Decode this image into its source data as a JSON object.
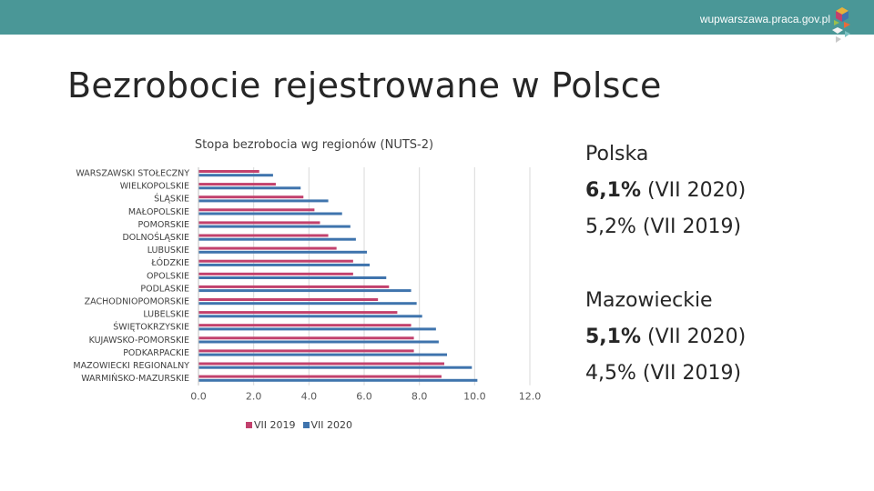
{
  "header": {
    "site_url": "wupwarszawa.praca.gov.pl",
    "logo_icon": "cube-logo-icon"
  },
  "page": {
    "title": "Bezrobocie rejestrowane w Polsce"
  },
  "side_panel": {
    "blocks": [
      {
        "heading": "Polska",
        "current_value": "6,1%",
        "current_period": " (VII 2020)",
        "previous": "5,2% (VII 2019)"
      },
      {
        "heading": "Mazowieckie",
        "current_value": "5,1%",
        "current_period": " (VII 2020)",
        "previous": "4,5% (VII 2019)"
      }
    ]
  },
  "colors": {
    "topbar": "#4a9797",
    "series_2019": "#c2416d",
    "series_2020": "#3f74ad"
  },
  "chart_data": {
    "type": "bar",
    "orientation": "horizontal",
    "title": "Stopa bezrobocia wg regionów (NUTS-2)",
    "categories": [
      "WARSZAWSKI STOŁECZNY",
      "WIELKOPOLSKIE",
      "ŚLĄSKIE",
      "MAŁOPOLSKIE",
      "POMORSKIE",
      "DOLNOŚLĄSKIE",
      "LUBUSKIE",
      "ŁÓDZKIE",
      "OPOLSKIE",
      "PODLASKIE",
      "ZACHODNIOPOMORSKIE",
      "LUBELSKIE",
      "ŚWIĘTOKRZYSKIE",
      "KUJAWSKO-POMORSKIE",
      "PODKARPACKIE",
      "MAZOWIECKI REGIONALNY",
      "WARMIŃSKO-MAZURSKIE"
    ],
    "series": [
      {
        "name": "VII 2019",
        "values": [
          2.2,
          2.8,
          3.8,
          4.2,
          4.4,
          4.7,
          5.0,
          5.6,
          5.6,
          6.9,
          6.5,
          7.2,
          7.7,
          7.8,
          7.8,
          8.9,
          8.8
        ]
      },
      {
        "name": "VII 2020",
        "values": [
          2.7,
          3.7,
          4.7,
          5.2,
          5.5,
          5.7,
          6.1,
          6.2,
          6.8,
          7.7,
          7.9,
          8.1,
          8.6,
          8.7,
          9.0,
          9.9,
          10.1
        ]
      }
    ],
    "xlim": [
      0,
      12
    ],
    "xticks": [
      "0.0",
      "2.0",
      "4.0",
      "6.0",
      "8.0",
      "10.0",
      "12.0"
    ],
    "grid": true,
    "legend_position": "bottom"
  }
}
